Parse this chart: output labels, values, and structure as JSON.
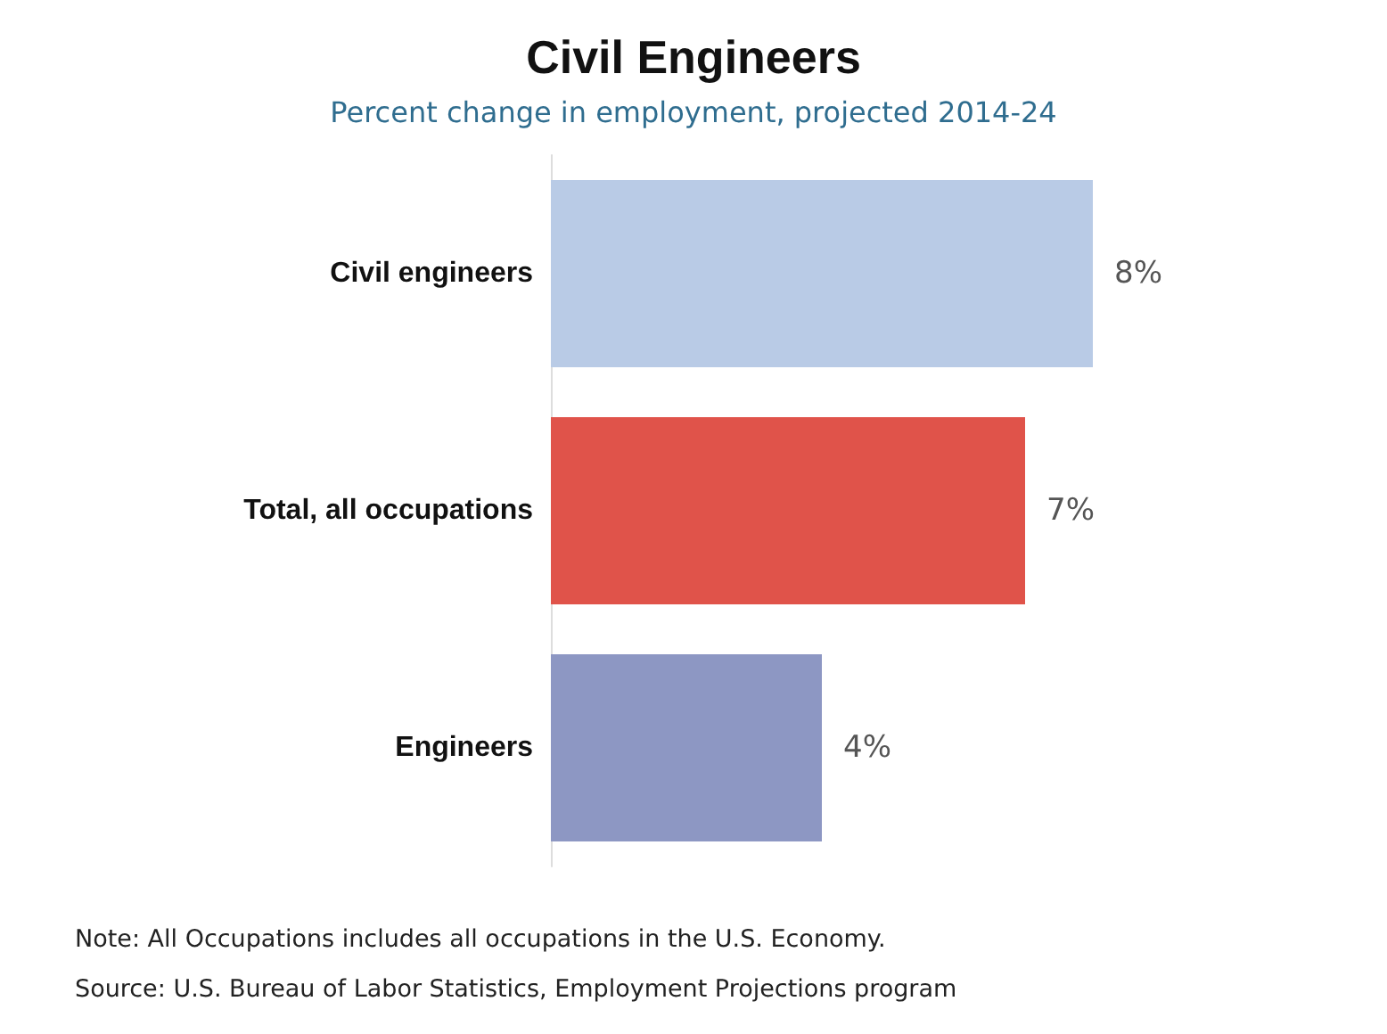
{
  "chart_data": {
    "type": "bar",
    "orientation": "horizontal",
    "title": "Civil Engineers",
    "subtitle": "Percent change in employment, projected 2014-24",
    "categories": [
      "Civil engineers",
      "Total, all occupations",
      "Engineers"
    ],
    "values": [
      8,
      7,
      4
    ],
    "colors": [
      "#b9cbe6",
      "#e0534a",
      "#8d97c3"
    ],
    "value_labels": [
      "8%",
      "7%",
      "4%"
    ],
    "annotations": [
      "Note: All Occupations includes all occupations in the U.S. Economy.",
      "Source: U.S. Bureau of Labor Statistics, Employment Projections program"
    ]
  }
}
